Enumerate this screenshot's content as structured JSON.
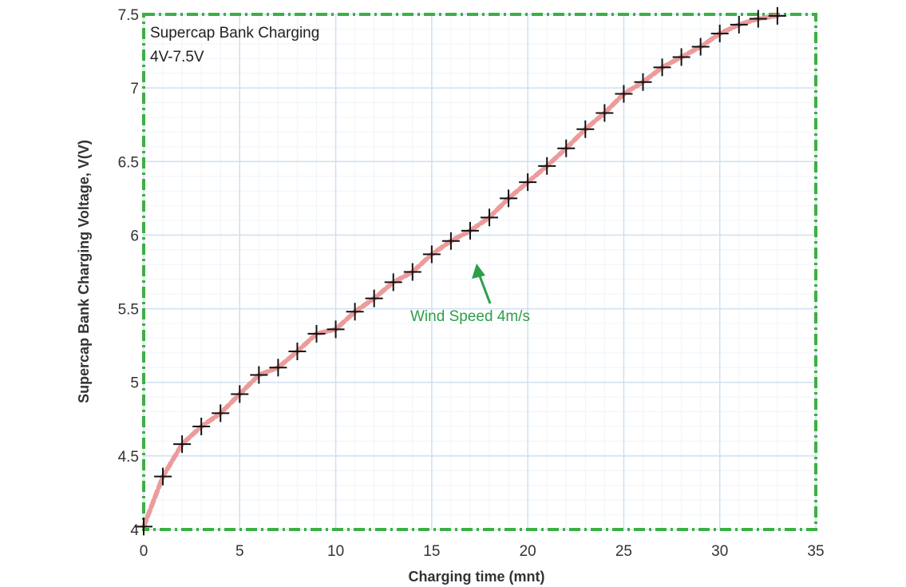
{
  "chart_data": {
    "type": "line",
    "title": "",
    "xlabel": "Charging time (mnt)",
    "ylabel": "Supercap Bank Charging Voltage, V(V)",
    "xlim": [
      0,
      35
    ],
    "ylim": [
      4,
      7.5
    ],
    "xticks": [
      0,
      5,
      10,
      15,
      20,
      25,
      30,
      35
    ],
    "yticks": [
      4,
      4.5,
      5,
      5.5,
      6,
      6.5,
      7,
      7.5
    ],
    "ytick_labels": [
      "4",
      "4.5",
      "5",
      "5.5",
      "6",
      "6.5",
      "7",
      "7.5"
    ],
    "grid": true,
    "box_lines": [
      "Supercap Bank Charging",
      "4V-7.5V"
    ],
    "annotation": {
      "text": "Wind Speed 4m/s",
      "points_to": [
        17,
        6.02
      ]
    },
    "series": [
      {
        "name": "",
        "marker": "plus",
        "line_color": "#e98a8a",
        "marker_color": "#111111",
        "x": [
          0,
          1,
          2,
          3,
          4,
          5,
          6,
          7,
          8,
          9,
          10,
          11,
          12,
          13,
          14,
          15,
          16,
          17,
          18,
          19,
          20,
          21,
          22,
          23,
          24,
          25,
          26,
          27,
          28,
          29,
          30,
          31,
          32,
          33
        ],
        "y": [
          4.02,
          4.36,
          4.58,
          4.7,
          4.79,
          4.92,
          5.05,
          5.1,
          5.21,
          5.33,
          5.36,
          5.48,
          5.57,
          5.68,
          5.75,
          5.87,
          5.96,
          6.03,
          6.12,
          6.25,
          6.36,
          6.47,
          6.59,
          6.72,
          6.83,
          6.96,
          7.04,
          7.14,
          7.21,
          7.28,
          7.37,
          7.43,
          7.47,
          7.49
        ]
      }
    ]
  },
  "colors": {
    "frame_border": "#3cb043",
    "grid": "#cfe0f0",
    "curve": "#e98a8a",
    "marker": "#111111",
    "annotation": "#2e9e4a"
  }
}
